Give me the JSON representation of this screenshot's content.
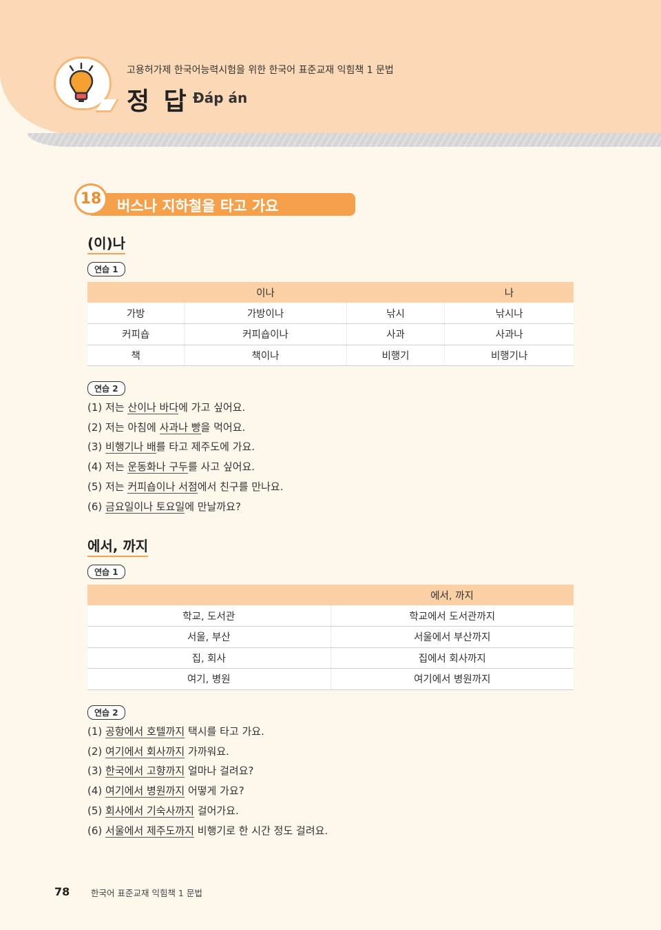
{
  "header": {
    "subtitle": "고용허가제 한국어능력시험을 위한 한국어 표준교재 익힘책 1  문법",
    "title": "정 답",
    "title_vi": "Đáp án",
    "icon": "lightbulb-icon"
  },
  "lesson": {
    "number": "18",
    "title": "버스나 지하철을 타고 가요"
  },
  "sections": [
    {
      "heading": "(이)나",
      "ex1": {
        "badge": "연습 1",
        "headers": [
          "",
          "이나",
          "",
          "나"
        ],
        "rows": [
          [
            "가방",
            "가방이나",
            "낚시",
            "낚시나"
          ],
          [
            "커피숍",
            "커피숍이나",
            "사과",
            "사과나"
          ],
          [
            "책",
            "책이나",
            "비행기",
            "비행기나"
          ]
        ]
      },
      "ex2": {
        "badge": "연습 2",
        "items": [
          {
            "num": "(1) ",
            "pre": "저는 ",
            "ans": "산이나 바다",
            "post": "에 가고 싶어요."
          },
          {
            "num": "(2) ",
            "pre": "저는 아침에 ",
            "ans": "사과나 빵",
            "post": "을 먹어요."
          },
          {
            "num": "(3) ",
            "pre": "",
            "ans": "비행기나 배",
            "post": "를 타고 제주도에 가요."
          },
          {
            "num": "(4) ",
            "pre": "저는 ",
            "ans": "운동화나 구두",
            "post": "를 사고 싶어요."
          },
          {
            "num": "(5) ",
            "pre": "저는 ",
            "ans": "커피숍이나 서점",
            "post": "에서 친구를 만나요."
          },
          {
            "num": "(6) ",
            "pre": "",
            "ans": "금요일이나 토요일",
            "post": "에 만날까요?"
          }
        ]
      }
    },
    {
      "heading": "에서, 까지",
      "ex1": {
        "badge": "연습 1",
        "headers": [
          "",
          "에서, 까지"
        ],
        "rows": [
          [
            "학교, 도서관",
            "학교에서 도서관까지"
          ],
          [
            "서울, 부산",
            "서울에서 부산까지"
          ],
          [
            "집, 회사",
            "집에서 회사까지"
          ],
          [
            "여기, 병원",
            "여기에서 병원까지"
          ]
        ]
      },
      "ex2": {
        "badge": "연습 2",
        "items": [
          {
            "num": "(1) ",
            "pre": "",
            "ans": "공항에서 호텔까지",
            "post": " 택시를 타고 가요."
          },
          {
            "num": "(2) ",
            "pre": "",
            "ans": "여기에서 회사까지",
            "post": " 가까워요."
          },
          {
            "num": "(3) ",
            "pre": "",
            "ans": "한국에서 고향까지",
            "post": " 얼마나 걸려요?"
          },
          {
            "num": "(4) ",
            "pre": "",
            "ans": "여기에서 병원까지",
            "post": " 어떻게 가요?"
          },
          {
            "num": "(5) ",
            "pre": "",
            "ans": "회사에서 기숙사까지",
            "post": " 걸어가요."
          },
          {
            "num": "(6) ",
            "pre": "",
            "ans": "서울에서 제주도까지",
            "post": " 비행기로 한 시간 정도 걸려요."
          }
        ]
      }
    }
  ],
  "footer": {
    "page": "78",
    "book": "한국어 표준교재 익힘책 1  문법"
  },
  "colors": {
    "accent": "#f5a04b",
    "header_bg": "#fbd9b6",
    "table_header": "#fbd0a4"
  }
}
